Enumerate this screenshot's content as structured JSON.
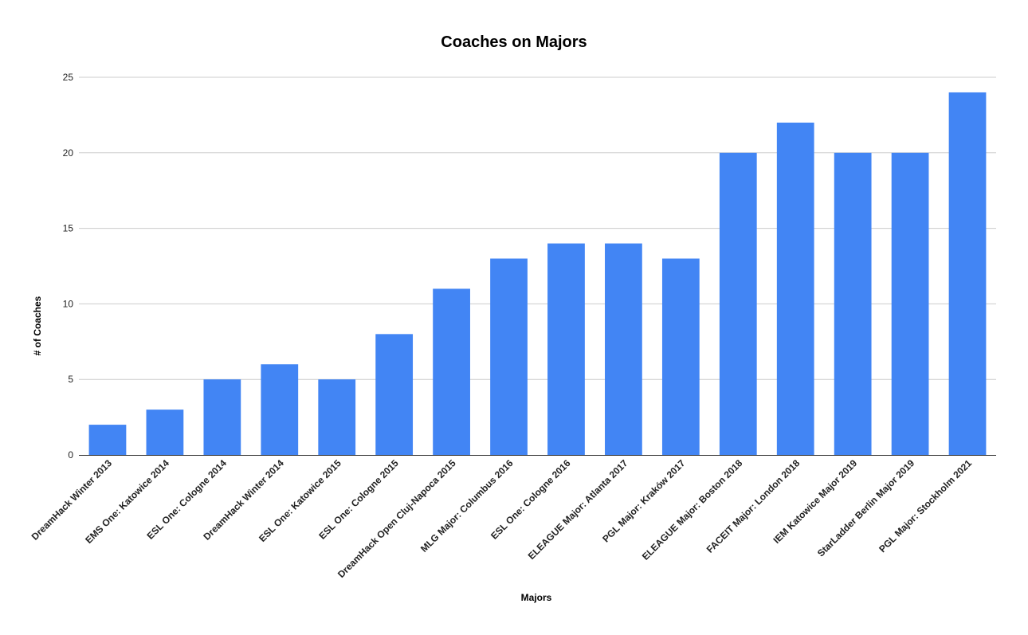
{
  "chart_data": {
    "type": "bar",
    "title": "Coaches on Majors",
    "xlabel": "Majors",
    "ylabel": "# of Coaches",
    "ylim": [
      0,
      25
    ],
    "yticks": [
      0,
      5,
      10,
      15,
      20,
      25
    ],
    "grid": true,
    "legend": "none",
    "bar_color": "#4285f4",
    "categories": [
      "DreamHack Winter 2013",
      "EMS One: Katowice 2014",
      "ESL One: Cologne 2014",
      "DreamHack Winter 2014",
      "ESL One: Katowice 2015",
      "ESL One: Cologne 2015",
      "DreamHack Open Cluj-Napoca 2015",
      "MLG Major: Columbus 2016",
      "ESL One: Cologne 2016",
      "ELEAGUE Major: Atlanta 2017",
      "PGL Major: Kraków 2017",
      "ELEAGUE Major: Boston 2018",
      "FACEIT Major: London 2018",
      "IEM Katowice Major 2019",
      "StarLadder Berlin Major 2019",
      "PGL Major: Stockholm 2021"
    ],
    "series": [
      {
        "values": [
          2,
          3,
          5,
          6,
          5,
          8,
          11,
          13,
          14,
          14,
          13,
          20,
          22,
          20,
          20,
          24
        ]
      }
    ]
  }
}
